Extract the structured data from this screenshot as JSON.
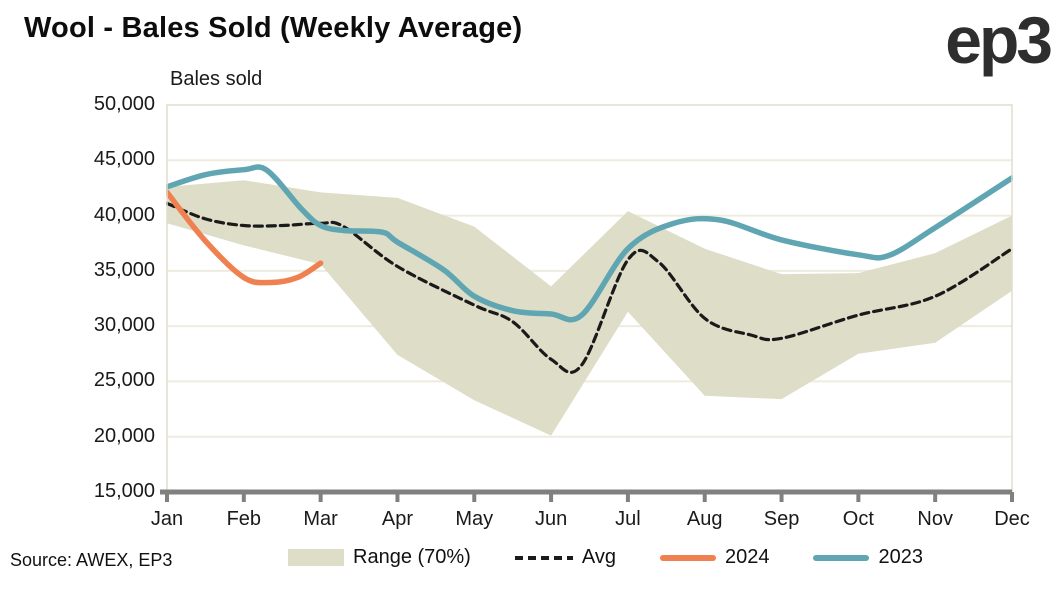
{
  "page": {
    "title": "Wool - Bales Sold (Weekly Average)",
    "logo_text": "ep3",
    "source_note": "Source: AWEX, EP3"
  },
  "colors": {
    "grid": "#edecdf",
    "plot_border": "#e0decc",
    "axis": "#808080",
    "text": "#1a1a1a",
    "band": "#deddc7",
    "avg": "#1a1a1a",
    "y2024": "#ef8150",
    "y2023": "#5fa5b2"
  },
  "chart_data": {
    "type": "line",
    "title": "Wool - Bales Sold (Weekly Average)",
    "ylabel": "Bales sold",
    "xlabel": "",
    "categories": [
      "Jan",
      "Feb",
      "Mar",
      "Apr",
      "May",
      "Jun",
      "Jul",
      "Aug",
      "Sep",
      "Oct",
      "Nov",
      "Dec"
    ],
    "ylim": [
      15000,
      50000
    ],
    "ytick_step": 5000,
    "grid": true,
    "legend_position": "bottom",
    "band": {
      "name": "Range (70%)",
      "color": "#deddc7",
      "x": [
        0,
        1,
        2,
        3,
        4,
        5,
        6,
        7,
        8,
        9,
        10,
        11
      ],
      "top": [
        42600,
        43200,
        42100,
        41600,
        39000,
        33600,
        40400,
        37000,
        34700,
        34800,
        36600,
        40000
      ],
      "bottom": [
        39300,
        37300,
        35600,
        27400,
        23300,
        20100,
        31300,
        23700,
        23400,
        27500,
        28500,
        33200
      ]
    },
    "series": [
      {
        "name": "Avg",
        "style": "dashed",
        "color": "#1a1a1a",
        "x": [
          0,
          0.5,
          1,
          1.5,
          2,
          2.3,
          3,
          4,
          4.5,
          5,
          5.4,
          6,
          6.4,
          7,
          7.6,
          8,
          9,
          10,
          11
        ],
        "values": [
          41100,
          39700,
          39100,
          39100,
          39300,
          39000,
          35400,
          31900,
          30400,
          27000,
          26500,
          36000,
          35800,
          30700,
          29200,
          28900,
          31000,
          32700,
          37000
        ]
      },
      {
        "name": "2024",
        "style": "solid",
        "color": "#ef8150",
        "x": [
          0,
          0.5,
          1,
          1.35,
          1.7,
          2
        ],
        "values": [
          42100,
          37700,
          34400,
          33950,
          34400,
          35700
        ]
      },
      {
        "name": "2023",
        "style": "solid",
        "color": "#5fa5b2",
        "x": [
          0,
          0.5,
          1,
          1.3,
          1.75,
          2,
          2.3,
          2.8,
          3,
          3.6,
          4,
          4.5,
          5,
          5.4,
          6,
          6.6,
          7.2,
          8,
          9,
          9.4,
          10,
          11
        ],
        "values": [
          42600,
          43700,
          44150,
          44100,
          40600,
          39100,
          38650,
          38500,
          37600,
          35100,
          32700,
          31400,
          31100,
          31000,
          37000,
          39300,
          39600,
          37800,
          36450,
          36400,
          38900,
          43400
        ]
      }
    ]
  }
}
